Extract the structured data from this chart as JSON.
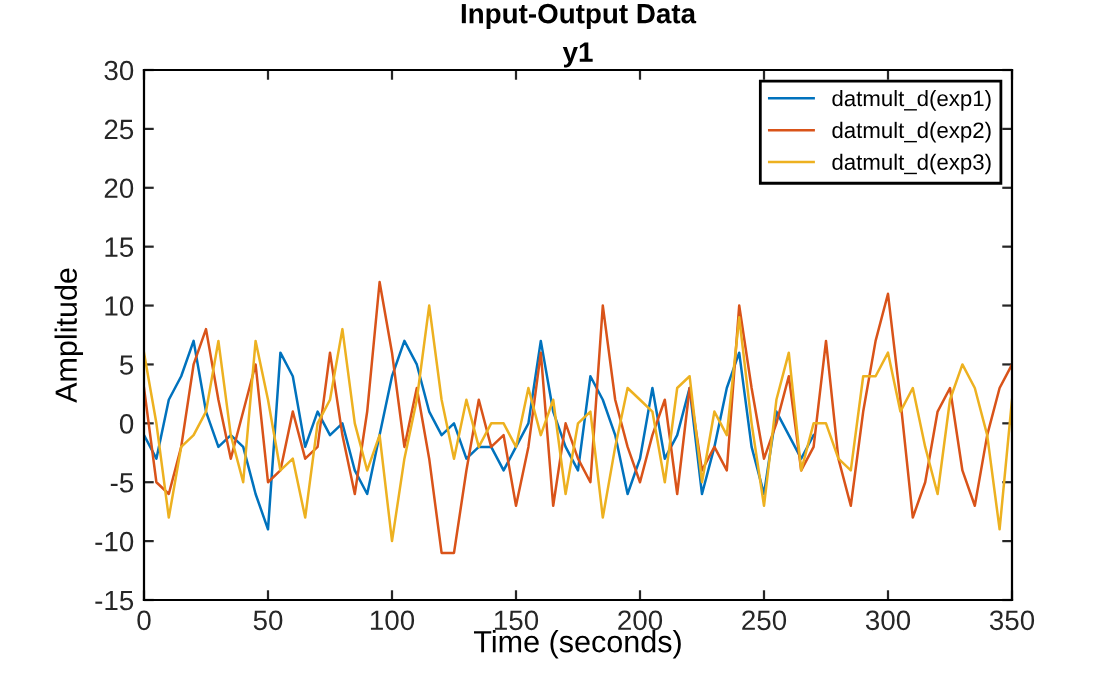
{
  "chart_data": {
    "type": "line",
    "title": "Input-Output Data",
    "subtitle": "y1",
    "xlabel": "Time (seconds)",
    "ylabel": "Amplitude",
    "xlim": [
      0,
      350
    ],
    "xticks": [
      0,
      50,
      100,
      150,
      200,
      250,
      300,
      350
    ],
    "ylim": [
      -15,
      30
    ],
    "yticks": [
      -15,
      -10,
      -5,
      0,
      5,
      10,
      15,
      20,
      25,
      30
    ],
    "grid": false,
    "legend": "top right",
    "line_style": "solid",
    "marker": "none",
    "series": [
      {
        "name": "datmult_d(exp1)",
        "color": "#0072bd",
        "x": [
          0,
          5,
          10,
          15,
          20,
          25,
          30,
          35,
          40,
          45,
          50,
          55,
          60,
          65,
          70,
          75,
          80,
          85,
          90,
          95,
          100,
          105,
          110,
          115,
          120,
          125,
          130,
          135,
          140,
          145,
          150,
          155,
          160,
          165,
          170,
          175,
          180,
          185,
          190,
          195,
          200,
          205,
          210,
          215,
          220,
          225,
          230,
          235,
          240,
          245,
          250,
          255,
          260,
          265,
          270
        ],
        "values": [
          -1,
          -3,
          2,
          4,
          7,
          1,
          -2,
          -1,
          -2,
          -6,
          -9,
          6,
          4,
          -2,
          1,
          -1,
          0,
          -4,
          -6,
          -1,
          4,
          7,
          5,
          1,
          -1,
          0,
          -3,
          -2,
          -2,
          -4,
          -2,
          0,
          7,
          1,
          -2,
          -4,
          4,
          2,
          -1,
          -6,
          -3,
          3,
          -3,
          -1,
          3,
          -6,
          -2,
          3,
          6,
          -2,
          -6,
          1,
          -1,
          -3,
          -1
        ]
      },
      {
        "name": "datmult_d(exp2)",
        "color": "#d95319",
        "x": [
          0,
          5,
          10,
          15,
          20,
          25,
          30,
          35,
          40,
          45,
          50,
          55,
          60,
          65,
          70,
          75,
          80,
          85,
          90,
          95,
          100,
          105,
          110,
          115,
          120,
          125,
          130,
          135,
          140,
          145,
          150,
          155,
          160,
          165,
          170,
          175,
          180,
          185,
          190,
          195,
          200,
          205,
          210,
          215,
          220,
          225,
          230,
          235,
          240,
          245,
          250,
          255,
          260,
          265,
          270,
          275,
          280,
          285,
          290,
          295,
          300,
          305,
          310,
          315,
          320,
          325,
          330,
          335,
          340,
          345,
          350
        ],
        "values": [
          3,
          -5,
          -6,
          -2,
          5,
          8,
          2,
          -3,
          1,
          5,
          -5,
          -4,
          1,
          -3,
          -2,
          6,
          -1,
          -6,
          1,
          12,
          6,
          -2,
          3,
          -3,
          -11,
          -11,
          -4,
          2,
          -2,
          -1,
          -7,
          -2,
          6,
          -7,
          0,
          -3,
          -5,
          10,
          2,
          -2,
          -5,
          -1,
          2,
          -6,
          3,
          -4,
          -2,
          -4,
          10,
          3,
          -3,
          0,
          4,
          -4,
          -2,
          7,
          -3,
          -7,
          1,
          7,
          11,
          2,
          -8,
          -5,
          1,
          3,
          -4,
          -7,
          -1,
          3,
          5
        ]
      },
      {
        "name": "datmult_d(exp3)",
        "color": "#edb120",
        "x": [
          0,
          5,
          10,
          15,
          20,
          25,
          30,
          35,
          40,
          45,
          50,
          55,
          60,
          65,
          70,
          75,
          80,
          85,
          90,
          95,
          100,
          105,
          110,
          115,
          120,
          125,
          130,
          135,
          140,
          145,
          150,
          155,
          160,
          165,
          170,
          175,
          180,
          185,
          190,
          195,
          200,
          205,
          210,
          215,
          220,
          225,
          230,
          235,
          240,
          245,
          250,
          255,
          260,
          265,
          270,
          275,
          280,
          285,
          290,
          295,
          300,
          305,
          310,
          315,
          320,
          325,
          330,
          335,
          340,
          345,
          350
        ],
        "values": [
          6,
          0,
          -8,
          -2,
          -1,
          1,
          7,
          -1,
          -5,
          7,
          2,
          -4,
          -3,
          -8,
          0,
          2,
          8,
          0,
          -4,
          -1,
          -10,
          -3,
          2,
          10,
          2,
          -3,
          2,
          -2,
          0,
          0,
          -2,
          3,
          -1,
          2,
          -6,
          0,
          1,
          -8,
          -2,
          3,
          2,
          1,
          -5,
          3,
          4,
          -5,
          1,
          -1,
          9,
          0,
          -7,
          2,
          6,
          -4,
          0,
          0,
          -3,
          -4,
          4,
          4,
          6,
          1,
          3,
          -2,
          -6,
          2,
          5,
          3,
          -1,
          -9,
          2
        ]
      }
    ]
  }
}
